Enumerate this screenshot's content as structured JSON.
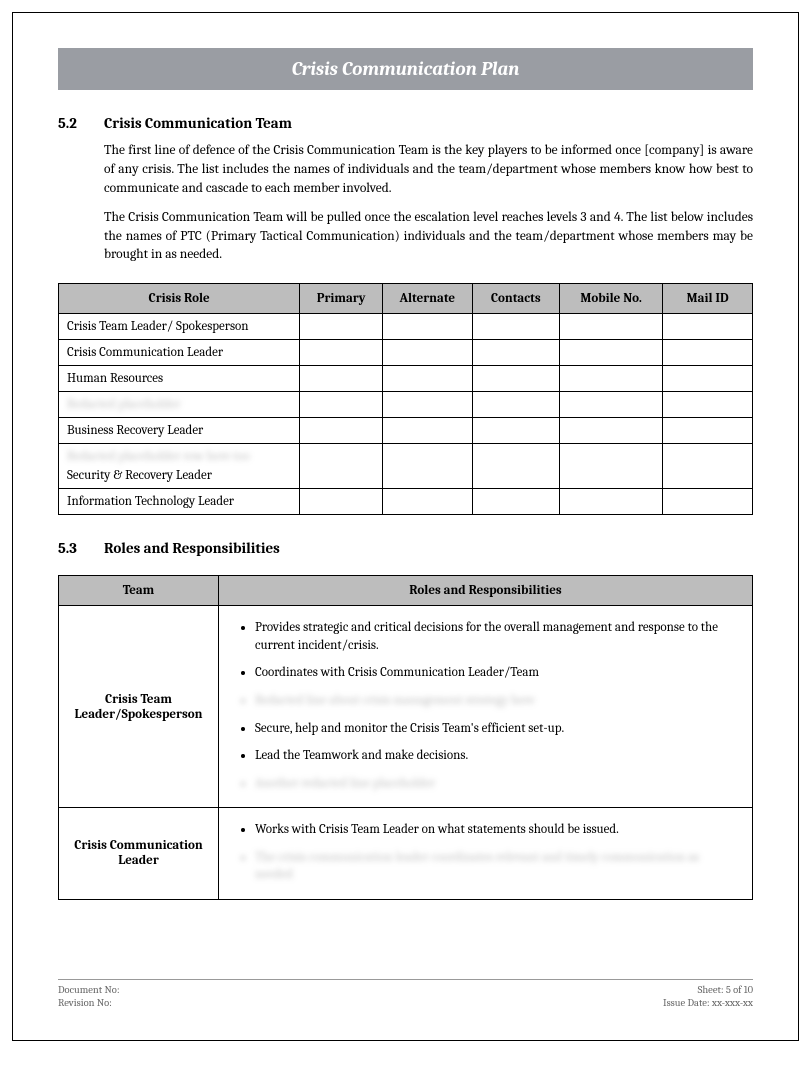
{
  "header": {
    "title": "Crisis Communication Plan"
  },
  "section1": {
    "number": "5.2",
    "title": "Crisis Communication Team",
    "para1": "The first line of defence of the Crisis Communication Team is the key players to be informed once [company] is aware of any crisis. The list includes the names of individuals and the team/department whose members know how best to communicate and cascade to each member involved.",
    "para2": "The Crisis Communication Team will be pulled once the escalation level reaches levels 3 and 4. The list below includes the names of PTC (Primary Tactical Communication) individuals and the team/department whose members may be brought in as needed."
  },
  "crisis_table": {
    "columns": [
      "Crisis Role",
      "Primary",
      "Alternate",
      "Contacts",
      "Mobile No.",
      "Mail ID"
    ],
    "rows": [
      {
        "role": "Crisis Team Leader/ Spokesperson",
        "blurred": false
      },
      {
        "role": "Crisis Communication Leader",
        "blurred": false
      },
      {
        "role": "Human Resources",
        "blurred": false
      },
      {
        "role": "Redacted placeholder",
        "blurred": true
      },
      {
        "role": "Business Recovery Leader",
        "blurred": false
      },
      {
        "role": "Redacted placeholder row here too",
        "blurred": true,
        "subrow": "Security & Recovery Leader"
      },
      {
        "role": "Information Technology Leader",
        "blurred": false
      }
    ]
  },
  "section2": {
    "number": "5.3",
    "title": "Roles and Responsibilities"
  },
  "roles_table": {
    "columns": [
      "Team",
      "Roles and Responsibilities"
    ],
    "rows": [
      {
        "team": "Crisis Team Leader/Spokesperson",
        "items": [
          {
            "text": "Provides strategic and critical decisions for the overall management and response to the current incident/crisis.",
            "blurred": false
          },
          {
            "text": "Coordinates with Crisis Communication Leader/Team",
            "blurred": false
          },
          {
            "text": "Redacted line about crisis management strategy here",
            "blurred": true
          },
          {
            "text": "Secure, help and monitor the Crisis Team's efficient set-up.",
            "blurred": false
          },
          {
            "text": "Lead the Teamwork and make decisions.",
            "blurred": false
          },
          {
            "text": "Another redacted line placeholder",
            "blurred": true
          }
        ]
      },
      {
        "team": "Crisis Communication Leader",
        "items": [
          {
            "text": "Works with Crisis Team Leader on what statements should be issued.",
            "blurred": false
          },
          {
            "text": "The crisis communication leader coordinates relevant and timely communication as needed",
            "blurred": true
          }
        ]
      }
    ]
  },
  "footer": {
    "doc_no_label": "Document No:",
    "rev_no_label": "Revision No:",
    "sheet_label": "Sheet: 5 of 10",
    "issue_label": "Issue Date: xx-xxx-xx"
  },
  "colors": {
    "header_bg": "#9a9da3",
    "th_bg": "#bdbdbd",
    "text": "#000000",
    "footer_text": "#666666"
  }
}
